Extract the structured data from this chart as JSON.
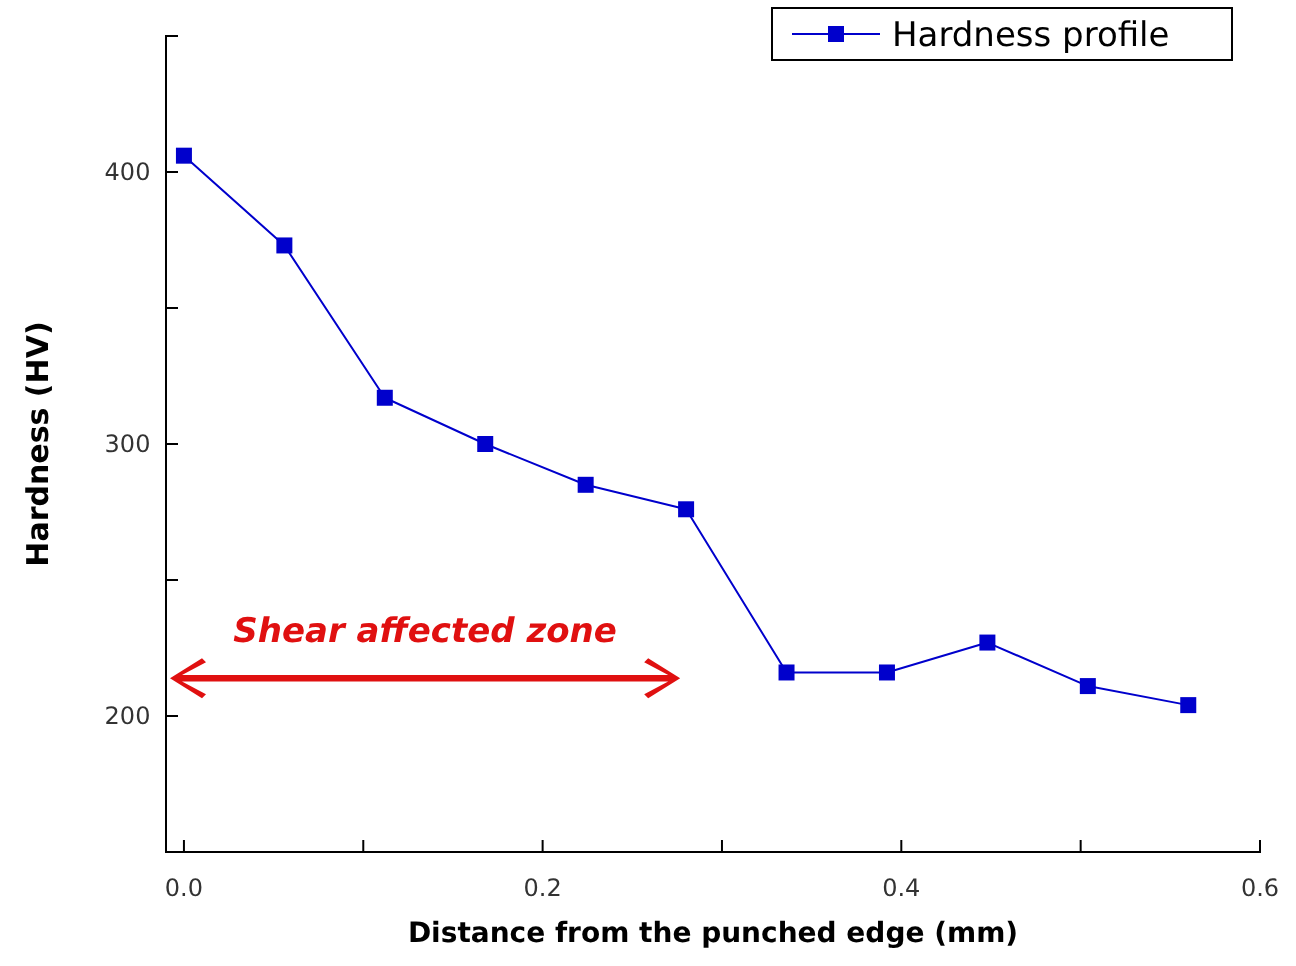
{
  "chart_data": {
    "type": "line",
    "xlabel": "Distance from the punched edge (mm)",
    "ylabel": "Hardness (HV)",
    "x": [
      0,
      0.056,
      0.112,
      0.168,
      0.224,
      0.28,
      0.336,
      0.392,
      0.448,
      0.504,
      0.56
    ],
    "series": [
      {
        "name": "Hardness profile",
        "color": "#0000cc",
        "values": [
          406,
          373,
          317,
          300,
          285,
          276,
          216,
          216,
          227,
          211,
          204
        ]
      }
    ],
    "xlim": [
      -0.01,
      0.6
    ],
    "ylim": [
      150,
      450
    ],
    "xticks": [
      {
        "value": 0,
        "label": "0.0"
      },
      {
        "value": 0.1,
        "label": null
      },
      0.2,
      {
        "value": 0.3,
        "label": null
      },
      0.4,
      {
        "value": 0.5,
        "label": null
      },
      0.6
    ],
    "yticks": [
      200,
      {
        "value": 250,
        "label": null
      },
      300,
      {
        "value": 350,
        "label": null
      },
      400
    ],
    "annotations": [
      "Shear affected zone"
    ],
    "marker": "square",
    "line_style": "solid",
    "legend": "top right",
    "grid": false
  }
}
